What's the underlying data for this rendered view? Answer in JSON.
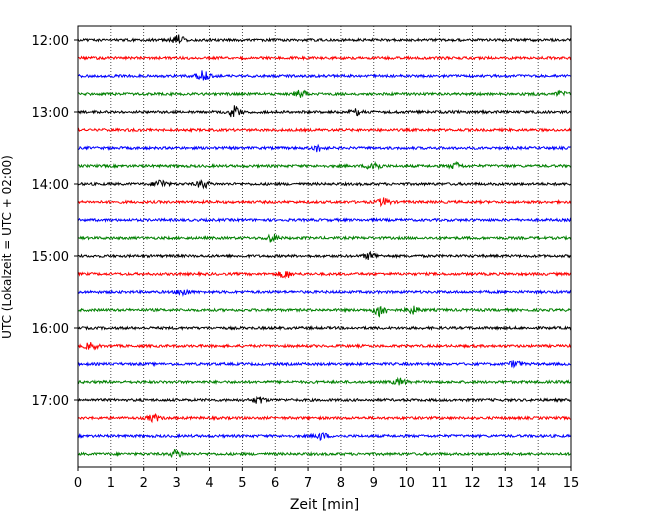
{
  "chart_data": {
    "type": "line",
    "title": "",
    "xlabel": "Zeit  [min]",
    "ylabel": "UTC (Lokalzeit = UTC + 02:00)",
    "xlim": [
      0,
      15
    ],
    "x_ticks": [
      0,
      1,
      2,
      3,
      4,
      5,
      6,
      7,
      8,
      9,
      10,
      11,
      12,
      13,
      14,
      15
    ],
    "x_tick_labels": [
      "0",
      "1",
      "2",
      "3",
      "4",
      "5",
      "6",
      "7",
      "8",
      "9",
      "10",
      "11",
      "12",
      "13",
      "14",
      "15"
    ],
    "y_tick_labels": [
      "12:00",
      "13:00",
      "14:00",
      "15:00",
      "16:00",
      "17:00"
    ],
    "y_tick_rows": [
      0,
      4,
      8,
      12,
      16,
      20
    ],
    "grid": "vertical-dotted",
    "legend": "none",
    "row_colors": [
      "#000000",
      "#ff0000",
      "#0000ff",
      "#008000"
    ],
    "rows": [
      {
        "start": "12:00",
        "color": "#000000",
        "events": [
          {
            "t": 3.05,
            "amp": 1.8
          }
        ]
      },
      {
        "start": "12:15",
        "color": "#ff0000",
        "events": []
      },
      {
        "start": "12:30",
        "color": "#0000ff",
        "events": [
          {
            "t": 3.8,
            "amp": 1.6
          }
        ]
      },
      {
        "start": "12:45",
        "color": "#008000",
        "events": [
          {
            "t": 6.8,
            "amp": 1.2
          },
          {
            "t": 14.7,
            "amp": 1.0
          }
        ]
      },
      {
        "start": "13:00",
        "color": "#000000",
        "events": [
          {
            "t": 4.75,
            "amp": 2.0
          },
          {
            "t": 8.5,
            "amp": 1.0
          }
        ]
      },
      {
        "start": "13:15",
        "color": "#ff0000",
        "events": []
      },
      {
        "start": "13:30",
        "color": "#0000ff",
        "events": [
          {
            "t": 7.3,
            "amp": 1.0
          }
        ]
      },
      {
        "start": "13:45",
        "color": "#008000",
        "events": [
          {
            "t": 9.0,
            "amp": 1.8
          },
          {
            "t": 11.5,
            "amp": 1.0
          }
        ]
      },
      {
        "start": "14:00",
        "color": "#000000",
        "events": [
          {
            "t": 2.5,
            "amp": 1.4
          },
          {
            "t": 3.8,
            "amp": 1.3
          }
        ]
      },
      {
        "start": "14:15",
        "color": "#ff0000",
        "events": [
          {
            "t": 9.3,
            "amp": 1.2
          }
        ]
      },
      {
        "start": "14:30",
        "color": "#0000ff",
        "events": []
      },
      {
        "start": "14:45",
        "color": "#008000",
        "events": [
          {
            "t": 5.9,
            "amp": 1.2
          }
        ]
      },
      {
        "start": "15:00",
        "color": "#000000",
        "events": [
          {
            "t": 8.9,
            "amp": 1.1
          }
        ]
      },
      {
        "start": "15:15",
        "color": "#ff0000",
        "events": [
          {
            "t": 6.3,
            "amp": 1.3
          }
        ]
      },
      {
        "start": "15:30",
        "color": "#0000ff",
        "events": [
          {
            "t": 3.2,
            "amp": 1.1
          }
        ]
      },
      {
        "start": "15:45",
        "color": "#008000",
        "events": [
          {
            "t": 9.2,
            "amp": 2.2
          },
          {
            "t": 10.2,
            "amp": 1.1
          }
        ]
      },
      {
        "start": "16:00",
        "color": "#000000",
        "events": []
      },
      {
        "start": "16:15",
        "color": "#ff0000",
        "events": [
          {
            "t": 0.4,
            "amp": 1.1
          }
        ]
      },
      {
        "start": "16:30",
        "color": "#0000ff",
        "events": [
          {
            "t": 13.3,
            "amp": 1.0
          }
        ]
      },
      {
        "start": "16:45",
        "color": "#008000",
        "events": [
          {
            "t": 9.8,
            "amp": 1.1
          }
        ]
      },
      {
        "start": "17:00",
        "color": "#000000",
        "events": [
          {
            "t": 5.5,
            "amp": 1.1
          }
        ]
      },
      {
        "start": "17:15",
        "color": "#ff0000",
        "events": [
          {
            "t": 2.3,
            "amp": 1.1
          }
        ]
      },
      {
        "start": "17:30",
        "color": "#0000ff",
        "events": [
          {
            "t": 7.4,
            "amp": 1.1
          }
        ]
      },
      {
        "start": "17:45",
        "color": "#008000",
        "events": [
          {
            "t": 3.0,
            "amp": 1.2
          }
        ]
      }
    ]
  }
}
